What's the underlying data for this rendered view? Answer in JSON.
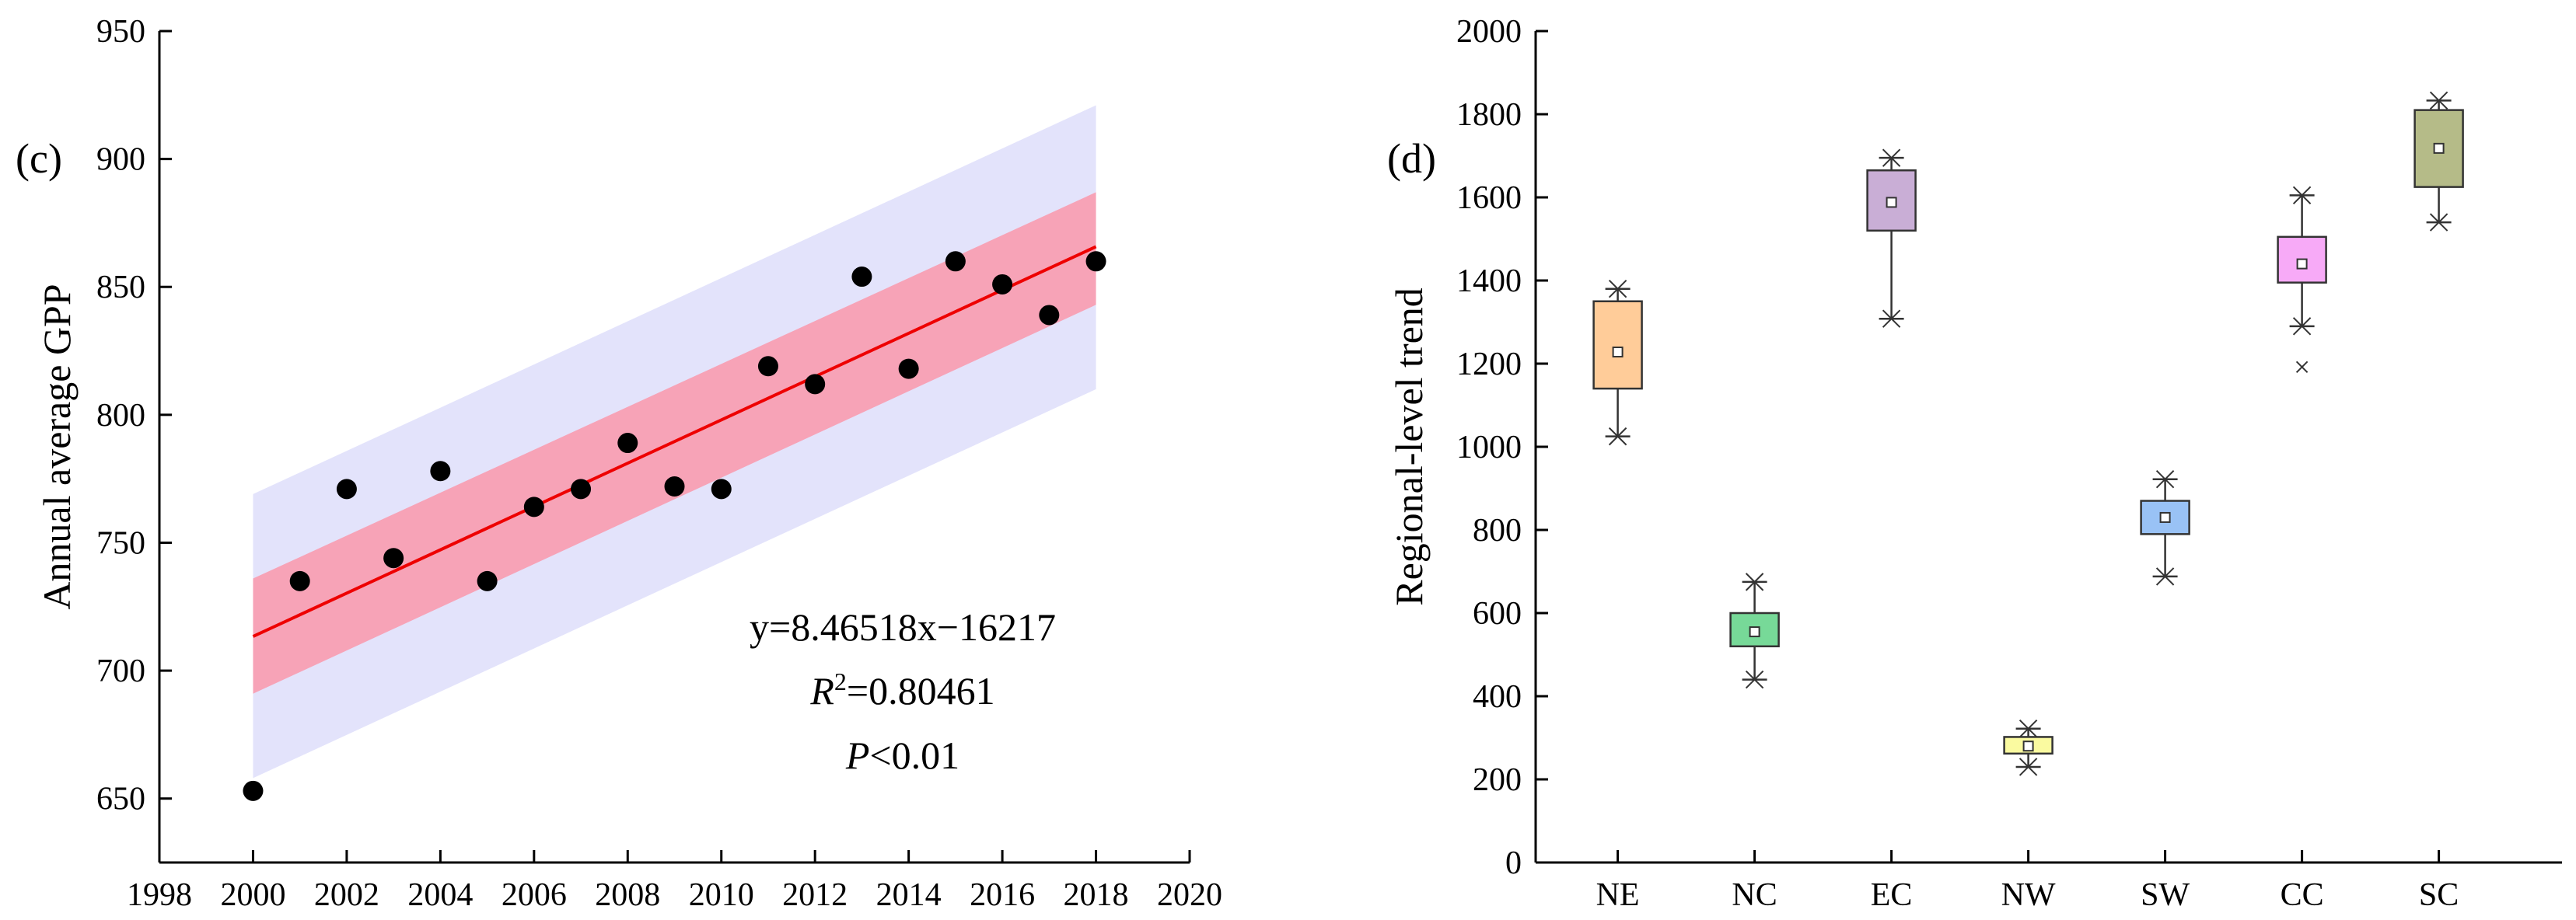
{
  "chart_data": [
    {
      "type": "scatter",
      "panel_label": "(c)",
      "xlabel": "",
      "ylabel": "Annual average GPP",
      "xlim": [
        1998,
        2020
      ],
      "ylim": [
        625,
        950
      ],
      "xticks": [
        "1998",
        "2000",
        "2002",
        "2004",
        "2006",
        "2008",
        "2010",
        "2012",
        "2014",
        "2016",
        "2018",
        "2020"
      ],
      "yticks": [
        "650",
        "700",
        "750",
        "800",
        "850",
        "900",
        "950"
      ],
      "points": {
        "x": [
          2000,
          2001,
          2002,
          2003,
          2004,
          2005,
          2006,
          2007,
          2008,
          2009,
          2010,
          2011,
          2012,
          2013,
          2014,
          2015,
          2016,
          2017,
          2018
        ],
        "y": [
          653,
          735,
          771,
          744,
          778,
          735,
          764,
          771,
          789,
          772,
          771,
          819,
          812,
          854,
          818,
          860,
          851,
          839,
          860
        ]
      },
      "fit": {
        "slope": 8.46518,
        "intercept": -16217,
        "equation": "y=8.46518x−16217",
        "r2_label": "R",
        "r2_value": "=0.80461",
        "p_label": "P",
        "p_value": "<0.01",
        "confidence_band": {
          "x": [
            2000,
            2018
          ],
          "lower": [
            691,
            843
          ],
          "upper": [
            736,
            887
          ]
        },
        "prediction_band": {
          "x": [
            2000,
            2018
          ],
          "lower": [
            658,
            810
          ],
          "upper": [
            769,
            921
          ]
        }
      },
      "colors": {
        "points": "#000000",
        "fit_line": "#ee0000",
        "confidence": "#f7a3b7",
        "prediction": "#e3e3fb"
      }
    },
    {
      "type": "box",
      "panel_label": "(d)",
      "xlabel": "",
      "ylabel": "Regional-level trend",
      "ylim": [
        0,
        2000
      ],
      "yticks": [
        "0",
        "200",
        "400",
        "600",
        "800",
        "1000",
        "1200",
        "1400",
        "1600",
        "1800",
        "2000"
      ],
      "categories": [
        "NE",
        "NC",
        "EC",
        "NW",
        "SW",
        "CC",
        "SC"
      ],
      "boxes": [
        {
          "name": "NE",
          "q1": 1140,
          "q3": 1350,
          "mean": 1228,
          "whisker_low": 1025,
          "whisker_high": 1380,
          "outliers": [],
          "color": "#ffcc99"
        },
        {
          "name": "NC",
          "q1": 520,
          "q3": 600,
          "mean": 555,
          "whisker_low": 440,
          "whisker_high": 675,
          "outliers": [],
          "color": "#77d998"
        },
        {
          "name": "EC",
          "q1": 1520,
          "q3": 1665,
          "mean": 1588,
          "whisker_low": 1308,
          "whisker_high": 1695,
          "outliers": [],
          "color": "#c9aed6"
        },
        {
          "name": "NW",
          "q1": 262,
          "q3": 302,
          "mean": 280,
          "whisker_low": 230,
          "whisker_high": 322,
          "outliers": [],
          "color": "#fafaa0"
        },
        {
          "name": "SW",
          "q1": 790,
          "q3": 870,
          "mean": 830,
          "whisker_low": 688,
          "whisker_high": 922,
          "outliers": [],
          "color": "#99c2f5"
        },
        {
          "name": "CC",
          "q1": 1395,
          "q3": 1505,
          "mean": 1440,
          "whisker_low": 1290,
          "whisker_high": 1605,
          "outliers": [
            1192
          ],
          "color": "#f7aaf7"
        },
        {
          "name": "SC",
          "q1": 1625,
          "q3": 1810,
          "mean": 1718,
          "whisker_low": 1540,
          "whisker_high": 1833,
          "outliers": [],
          "color": "#b5bb88"
        }
      ]
    }
  ]
}
